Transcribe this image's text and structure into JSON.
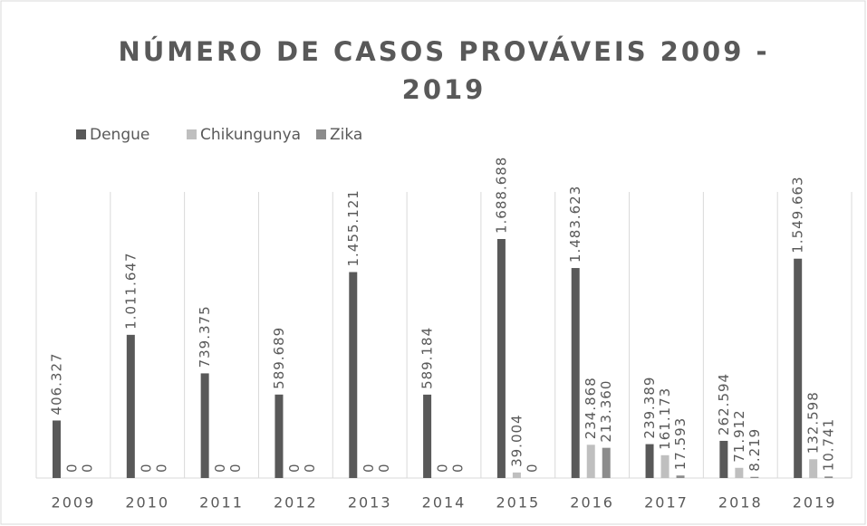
{
  "chart_data": {
    "type": "bar",
    "title": "NÚMERO DE CASOS PROVÁVEIS 2009 - 2019",
    "categories": [
      "2009",
      "2010",
      "2011",
      "2012",
      "2013",
      "2014",
      "2015",
      "2016",
      "2017",
      "2018",
      "2019"
    ],
    "legend": "top-left",
    "grid": true,
    "series": [
      {
        "name": "Dengue",
        "color": "#595959",
        "values": [
          406327,
          1011647,
          739375,
          589689,
          1455121,
          589184,
          1688688,
          1483623,
          239389,
          262594,
          1549663
        ],
        "value_labels": [
          "406.327",
          "1.011.647",
          "739.375",
          "589.689",
          "1.455.121",
          "589.184",
          "1.688.688",
          "1.483.623",
          "239.389",
          "262.594",
          "1.549.663"
        ]
      },
      {
        "name": "Chikungunya",
        "color": "#bfbfbf",
        "values": [
          0,
          0,
          0,
          0,
          0,
          0,
          39004,
          234868,
          161173,
          71912,
          132598
        ],
        "value_labels": [
          "0",
          "0",
          "0",
          "0",
          "0",
          "0",
          "39.004",
          "234.868",
          "161.173",
          "71.912",
          "132.598"
        ]
      },
      {
        "name": "Zika",
        "color": "#8c8c8c",
        "values": [
          0,
          0,
          0,
          0,
          0,
          0,
          0,
          213360,
          17593,
          8219,
          10741
        ],
        "value_labels": [
          "0",
          "0",
          "0",
          "0",
          "0",
          "0",
          "0",
          "213.360",
          "17.593",
          "8.219",
          "10.741"
        ]
      }
    ]
  }
}
